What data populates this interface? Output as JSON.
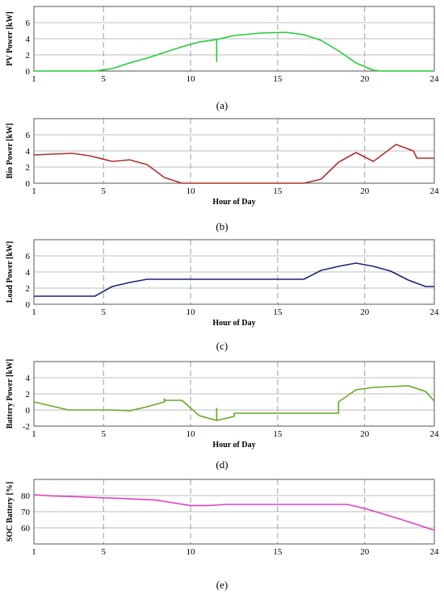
{
  "chart_data": [
    {
      "type": "line",
      "panel_label": "(a)",
      "xlabel": "",
      "ylabel": "PV Power [kW]",
      "xlim": [
        1,
        24
      ],
      "ylim": [
        0,
        8
      ],
      "xticks": [
        "1",
        "5",
        "10",
        "15",
        "20",
        "24"
      ],
      "yticks": [
        "0",
        "2",
        "4",
        "6"
      ],
      "color": "#22cc33",
      "series": [
        {
          "x": [
            1,
            4.5,
            5.5,
            6.5,
            7.5,
            9.5,
            10.5,
            11.5,
            11.5,
            11.5,
            12.5,
            14,
            15.5,
            16.5,
            17.5,
            18.5,
            19.5,
            20.5,
            21,
            24
          ],
          "y": [
            0,
            0,
            0.3,
            1,
            1.6,
            3,
            3.6,
            3.9,
            1.2,
            3.9,
            4.4,
            4.7,
            4.8,
            4.5,
            3.8,
            2.5,
            1,
            0.1,
            0,
            0
          ]
        }
      ]
    },
    {
      "type": "line",
      "panel_label": "(b)",
      "xlabel": "Hour of Day",
      "ylabel": "Bio Power [kW]",
      "xlim": [
        1,
        24
      ],
      "ylim": [
        0,
        8
      ],
      "xticks": [
        "1",
        "5",
        "10",
        "15",
        "20",
        "24"
      ],
      "yticks": [
        "0",
        "2",
        "4",
        "6"
      ],
      "color": "#b03030",
      "series": [
        {
          "x": [
            1,
            2,
            3.2,
            4.2,
            5.5,
            6.5,
            7.5,
            8.5,
            9.5,
            16.5,
            17.5,
            18.5,
            19.5,
            20.5,
            21.8,
            22.8,
            23,
            24
          ],
          "y": [
            3.5,
            3.6,
            3.7,
            3.4,
            2.7,
            2.9,
            2.3,
            0.7,
            0,
            0,
            0.5,
            2.6,
            3.8,
            2.7,
            4.8,
            4,
            3.1,
            3.1
          ]
        }
      ]
    },
    {
      "type": "line",
      "panel_label": "(c)",
      "xlabel": "Hour of Day",
      "ylabel": "Load Power [kW]",
      "xlim": [
        1,
        24
      ],
      "ylim": [
        0,
        8
      ],
      "xticks": [
        "1",
        "5",
        "10",
        "15",
        "20",
        "24"
      ],
      "yticks": [
        "0",
        "2",
        "4",
        "6"
      ],
      "color": "#1a237e",
      "series": [
        {
          "x": [
            1,
            4.5,
            5.5,
            6.5,
            7.5,
            16.5,
            17.5,
            18.5,
            19.5,
            20.5,
            21.5,
            22.5,
            23.5,
            24
          ],
          "y": [
            1,
            1,
            2.2,
            2.7,
            3.1,
            3.1,
            4.2,
            4.7,
            5.1,
            4.7,
            4.1,
            3,
            2.2,
            2.2
          ]
        }
      ]
    },
    {
      "type": "line",
      "panel_label": "(d)",
      "xlabel": "Hour of Day",
      "ylabel": "Battery Power [kW]",
      "xlim": [
        1,
        24
      ],
      "ylim": [
        -2,
        6
      ],
      "xticks": [
        "1",
        "5",
        "10",
        "15",
        "20",
        "24"
      ],
      "yticks": [
        "-2",
        "0",
        "2",
        "4"
      ],
      "color": "#66aa22",
      "series": [
        {
          "x": [
            1,
            2,
            3,
            4.5,
            5.5,
            6.5,
            7.5,
            8.5,
            8.5,
            8.5,
            9.5,
            10.5,
            11.5,
            11.5,
            11.5,
            12.5,
            12.5,
            18.5,
            18.5,
            19.5,
            20.5,
            21.5,
            22.5,
            23.5,
            24
          ],
          "y": [
            1,
            0.5,
            0,
            0,
            0,
            -0.1,
            0.4,
            1,
            1.4,
            1.2,
            1.2,
            -0.7,
            -1.3,
            0.2,
            -1.3,
            -0.8,
            -0.4,
            -0.4,
            1,
            2.5,
            2.8,
            2.9,
            3,
            2.3,
            1.1
          ]
        }
      ]
    },
    {
      "type": "line",
      "panel_label": "(e)",
      "xlabel": "",
      "ylabel": "SOC Battery [%]",
      "xlim": [
        1,
        24
      ],
      "ylim": [
        50,
        90
      ],
      "xticks": [
        "1",
        "5",
        "10",
        "15",
        "20",
        "24"
      ],
      "yticks": [
        "60",
        "70",
        "80"
      ],
      "color": "#e040c0",
      "series": [
        {
          "x": [
            1,
            2,
            4,
            6,
            8,
            9,
            10,
            11,
            12,
            13,
            14,
            16,
            18,
            18.5,
            19,
            20,
            21,
            22,
            23,
            24
          ],
          "y": [
            80.5,
            79.8,
            79,
            78.2,
            77.2,
            75.5,
            73.8,
            73.8,
            74.5,
            74.5,
            74.5,
            74.5,
            74.5,
            74.5,
            74.5,
            72,
            68.8,
            65.5,
            62,
            58.5
          ]
        }
      ]
    }
  ]
}
